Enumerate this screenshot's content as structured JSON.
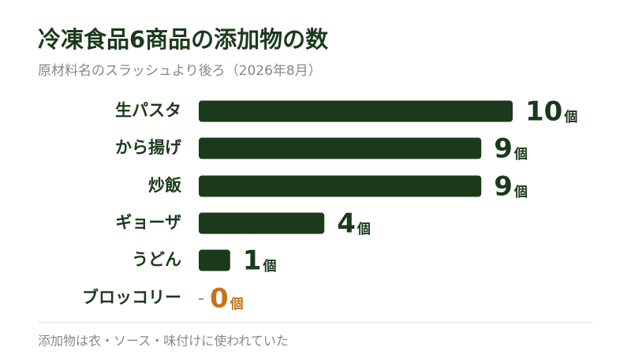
{
  "chart_data": {
    "type": "bar",
    "title": "冷凍食品6商品の添加物の数",
    "subtitle": "原材料名のスラッシュより後ろ（2026年8月）",
    "categories": [
      "生パスタ",
      "から揚げ",
      "炒飯",
      "ギョーザ",
      "うどん",
      "ブロッコリー"
    ],
    "values": [
      10,
      9,
      9,
      4,
      1,
      0
    ],
    "unit": "個",
    "colors": [
      "#1b3a1b",
      "#1b3a1b",
      "#1b3a1b",
      "#1b3a1b",
      "#1b3a1b",
      "#c8721f"
    ],
    "note": "添加物は衣・ソース・味付けに使われていた"
  }
}
